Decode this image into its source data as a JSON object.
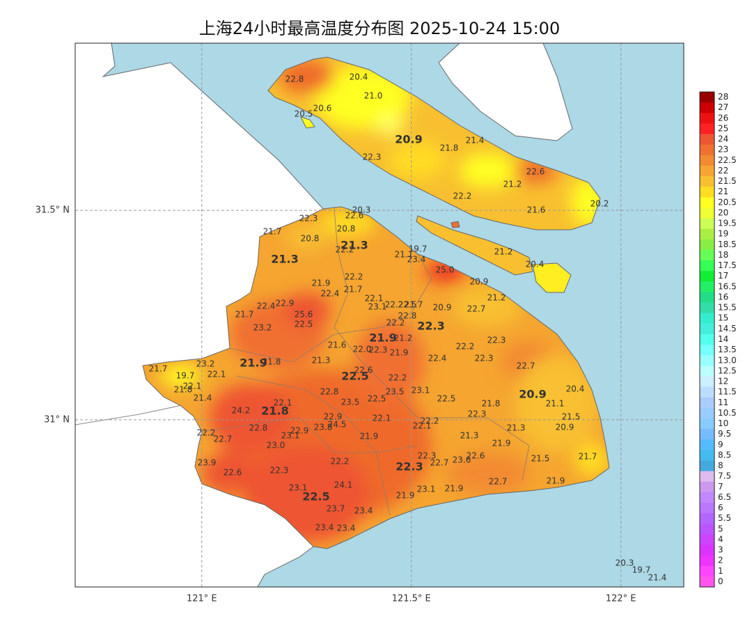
{
  "title": "上海24小时最高温度分布图 2025-10-24 15:00",
  "map": {
    "xlim": [
      120.698,
      122.15
    ],
    "ylim": [
      30.601,
      31.899
    ],
    "xticks": [
      {
        "value": 121,
        "label": "121° E"
      },
      {
        "value": 121.5,
        "label": "121.5° E"
      },
      {
        "value": 122,
        "label": "122° E"
      }
    ],
    "yticks": [
      {
        "value": 31.5,
        "label": "31.5° N"
      },
      {
        "value": 31,
        "label": "31° N"
      }
    ],
    "grid": true,
    "stations": [
      "22.8",
      "20.4",
      "21.0",
      "20.6",
      "20.5",
      "20.9",
      "21.8",
      "21.4",
      "22.3",
      "22.6",
      "21.2",
      "22.2",
      "21.6",
      "20.2",
      "22.3",
      "20.3",
      "22.6",
      "21.7",
      "20.8",
      "20.8",
      "21.3",
      "22.2",
      "21.3",
      "21.1",
      "19.7",
      "23.4",
      "25.0",
      "21.2",
      "20.4",
      "22.2",
      "21.9",
      "21.7",
      "22.4",
      "20.9",
      "21.2",
      "22.1",
      "22.4",
      "22.9",
      "23.1",
      "22.2",
      "22.5",
      "21.7",
      "20.9",
      "22.7",
      "21.7",
      "25.6",
      "22.8",
      "22.2",
      "22.5",
      "22.3",
      "23.2",
      "21.9",
      "21.2",
      "22.3",
      "21.6",
      "22.0",
      "22.3",
      "22.2",
      "21.9",
      "22.3",
      "22.4",
      "21.3",
      "21.9",
      "21.8",
      "22.7",
      "21.7",
      "23.2",
      "22.6",
      "22.1",
      "22.5",
      "19.7",
      "22.2",
      "22.1",
      "21.8",
      "20.4",
      "22.8",
      "23.1",
      "23.5",
      "20.9",
      "21.4",
      "22.5",
      "22.5",
      "21.1",
      "22.1",
      "23.5",
      "21.8",
      "24.2",
      "21.8",
      "22.3",
      "21.5",
      "22.9",
      "22.1",
      "22.2",
      "24.5",
      "22.1",
      "22.8",
      "23.8",
      "22.9",
      "23.1",
      "21.3",
      "20.9",
      "22.2",
      "22.7",
      "21.3",
      "21.9",
      "21.9",
      "23.0",
      "22.3",
      "22.6",
      "23.6",
      "22.7",
      "22.3",
      "22.2",
      "21.5",
      "21.7",
      "23.9",
      "22.6",
      "22.3",
      "24.1",
      "21.9",
      "22.7",
      "23.1",
      "22.5",
      "23.1",
      "21.9",
      "21.9",
      "23.7",
      "23.4",
      "23.4",
      "23.4",
      "20.3",
      "19.7",
      "21.4"
    ]
  },
  "colorbar": {
    "labels": [
      "28",
      "27",
      "26",
      "25",
      "24",
      "23",
      "22.5",
      "22",
      "21.5",
      "21",
      "20.5",
      "20",
      "19.5",
      "19",
      "18.5",
      "18",
      "17.5",
      "17",
      "16.5",
      "16",
      "15.5",
      "15",
      "14.5",
      "14",
      "13.5",
      "13.0",
      "12.5",
      "12",
      "11.5",
      "11",
      "10.5",
      "10",
      "9.5",
      "9",
      "8.5",
      "8",
      "7.5",
      "7",
      "6.5",
      "6",
      "5.5",
      "5",
      "4",
      "3",
      "2",
      "1",
      "0"
    ],
    "colors": [
      "#990000",
      "#cc0000",
      "#ee1111",
      "#ff2222",
      "#ee5533",
      "#f07030",
      "#f38a30",
      "#f5a530",
      "#f8c030",
      "#ffdd22",
      "#ffff22",
      "#eeff33",
      "#ccff55",
      "#aaee44",
      "#88ee44",
      "#66ff55",
      "#33ff55",
      "#11ee33",
      "#22ee66",
      "#22dd88",
      "#33ddaa",
      "#33eecc",
      "#44eedd",
      "#55ffee",
      "#77ffff",
      "#99ffff",
      "#bbffff",
      "#cceeff",
      "#bbddff",
      "#aaccff",
      "#99ccff",
      "#88ccff",
      "#77bbff",
      "#55bbff",
      "#44bbee",
      "#44aadd",
      "#ddbbee",
      "#cc99ee",
      "#c088ff",
      "#bb77ff",
      "#b266ff",
      "#bb55ff",
      "#cc44ff",
      "#dd33ff",
      "#ee33ff",
      "#ff44ff",
      "#ff55ee"
    ]
  }
}
